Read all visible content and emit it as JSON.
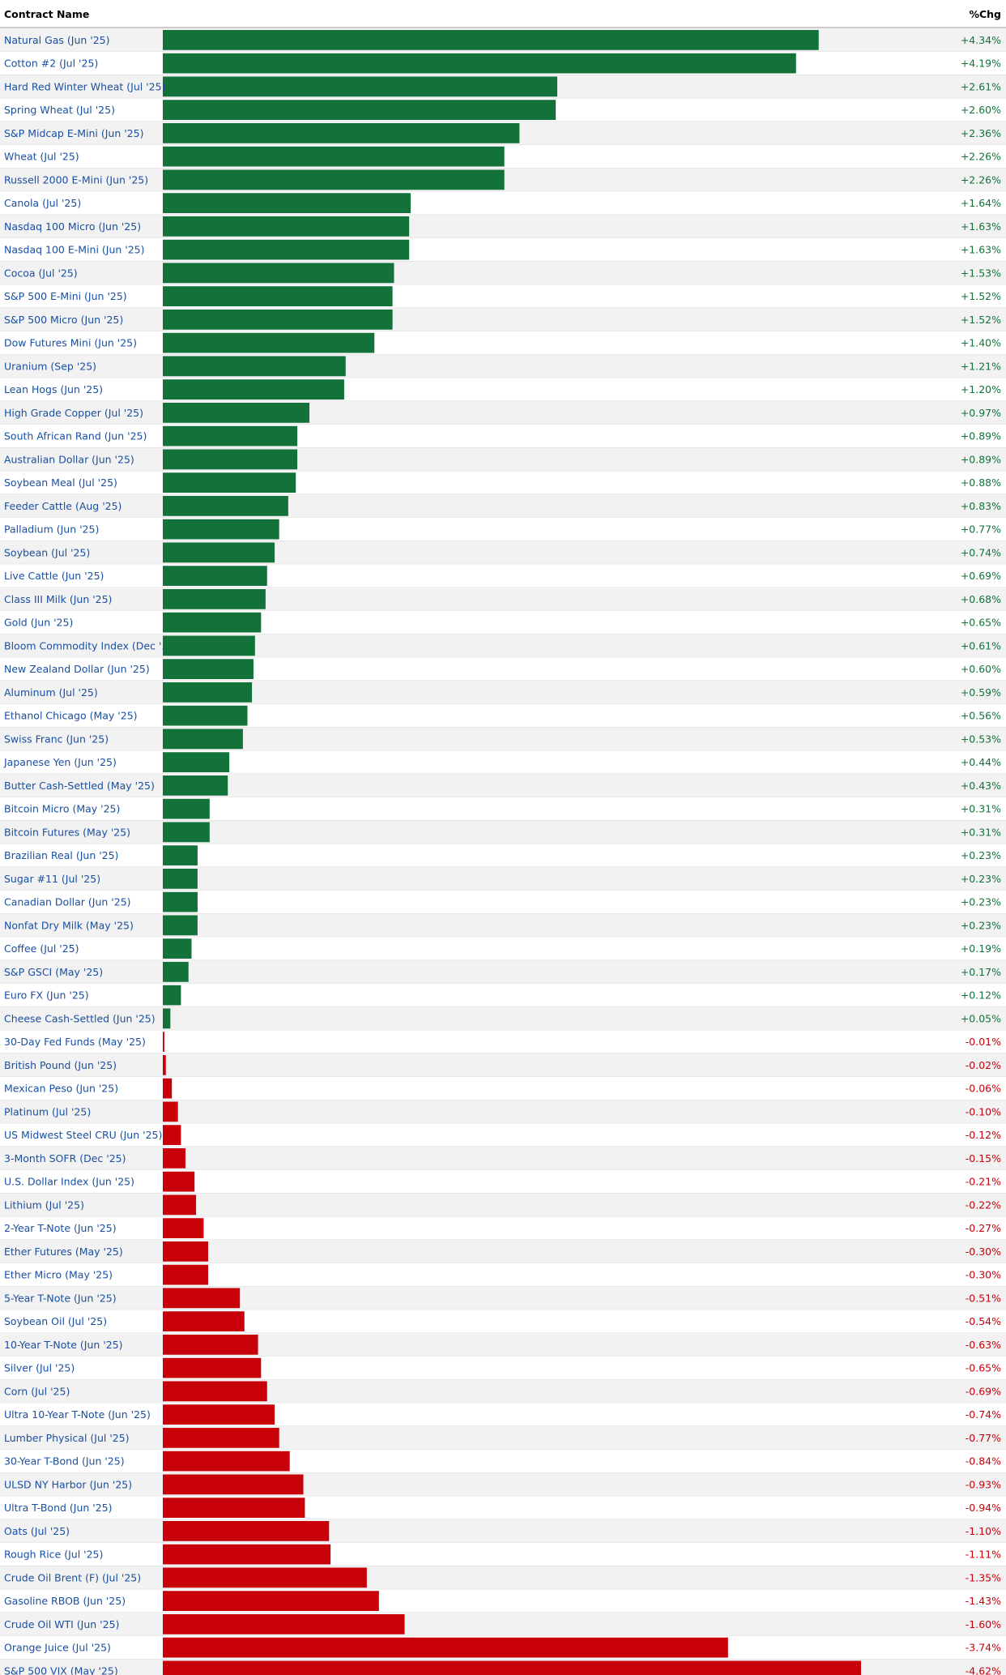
{
  "header": {
    "name_col": "Contract Name",
    "pct_col": "%Chg"
  },
  "colors": {
    "positive_bar": "#13723a",
    "negative_bar": "#c8000a",
    "positive_text": "#13723a",
    "negative_text": "#c8000a",
    "name_text": "#1a4fa0",
    "row_alt": "#f2f2f2",
    "row_line": "#d9d9d9"
  },
  "chart_data": {
    "type": "bar",
    "orientation": "horizontal",
    "xlabel": "",
    "ylabel": "",
    "rows": [
      {
        "name": "Natural Gas (Jun '25)",
        "value": 4.34,
        "label": "+4.34%"
      },
      {
        "name": "Cotton #2 (Jul '25)",
        "value": 4.19,
        "label": "+4.19%"
      },
      {
        "name": "Hard Red Winter Wheat (Jul '25)",
        "value": 2.61,
        "label": "+2.61%"
      },
      {
        "name": "Spring Wheat (Jul '25)",
        "value": 2.6,
        "label": "+2.60%"
      },
      {
        "name": "S&P Midcap E-Mini (Jun '25)",
        "value": 2.36,
        "label": "+2.36%"
      },
      {
        "name": "Wheat (Jul '25)",
        "value": 2.26,
        "label": "+2.26%"
      },
      {
        "name": "Russell 2000 E-Mini (Jun '25)",
        "value": 2.26,
        "label": "+2.26%"
      },
      {
        "name": "Canola (Jul '25)",
        "value": 1.64,
        "label": "+1.64%"
      },
      {
        "name": "Nasdaq 100 Micro (Jun '25)",
        "value": 1.63,
        "label": "+1.63%"
      },
      {
        "name": "Nasdaq 100 E-Mini (Jun '25)",
        "value": 1.63,
        "label": "+1.63%"
      },
      {
        "name": "Cocoa (Jul '25)",
        "value": 1.53,
        "label": "+1.53%"
      },
      {
        "name": "S&P 500 E-Mini (Jun '25)",
        "value": 1.52,
        "label": "+1.52%"
      },
      {
        "name": "S&P 500 Micro (Jun '25)",
        "value": 1.52,
        "label": "+1.52%"
      },
      {
        "name": "Dow Futures Mini (Jun '25)",
        "value": 1.4,
        "label": "+1.40%"
      },
      {
        "name": "Uranium (Sep '25)",
        "value": 1.21,
        "label": "+1.21%"
      },
      {
        "name": "Lean Hogs (Jun '25)",
        "value": 1.2,
        "label": "+1.20%"
      },
      {
        "name": "High Grade Copper (Jul '25)",
        "value": 0.97,
        "label": "+0.97%"
      },
      {
        "name": "South African Rand (Jun '25)",
        "value": 0.89,
        "label": "+0.89%"
      },
      {
        "name": "Australian Dollar (Jun '25)",
        "value": 0.89,
        "label": "+0.89%"
      },
      {
        "name": "Soybean Meal (Jul '25)",
        "value": 0.88,
        "label": "+0.88%"
      },
      {
        "name": "Feeder Cattle (Aug '25)",
        "value": 0.83,
        "label": "+0.83%"
      },
      {
        "name": "Palladium (Jun '25)",
        "value": 0.77,
        "label": "+0.77%"
      },
      {
        "name": "Soybean (Jul '25)",
        "value": 0.74,
        "label": "+0.74%"
      },
      {
        "name": "Live Cattle (Jun '25)",
        "value": 0.69,
        "label": "+0.69%"
      },
      {
        "name": "Class III Milk (Jun '25)",
        "value": 0.68,
        "label": "+0.68%"
      },
      {
        "name": "Gold (Jun '25)",
        "value": 0.65,
        "label": "+0.65%"
      },
      {
        "name": "Bloom Commodity Index (Dec '...",
        "value": 0.61,
        "label": "+0.61%"
      },
      {
        "name": "New Zealand Dollar (Jun '25)",
        "value": 0.6,
        "label": "+0.60%"
      },
      {
        "name": "Aluminum (Jul '25)",
        "value": 0.59,
        "label": "+0.59%"
      },
      {
        "name": "Ethanol Chicago (May '25)",
        "value": 0.56,
        "label": "+0.56%"
      },
      {
        "name": "Swiss Franc (Jun '25)",
        "value": 0.53,
        "label": "+0.53%"
      },
      {
        "name": "Japanese Yen (Jun '25)",
        "value": 0.44,
        "label": "+0.44%"
      },
      {
        "name": "Butter Cash-Settled (May '25)",
        "value": 0.43,
        "label": "+0.43%"
      },
      {
        "name": "Bitcoin Micro (May '25)",
        "value": 0.31,
        "label": "+0.31%"
      },
      {
        "name": "Bitcoin Futures (May '25)",
        "value": 0.31,
        "label": "+0.31%"
      },
      {
        "name": "Brazilian Real (Jun '25)",
        "value": 0.23,
        "label": "+0.23%"
      },
      {
        "name": "Sugar #11 (Jul '25)",
        "value": 0.23,
        "label": "+0.23%"
      },
      {
        "name": "Canadian Dollar (Jun '25)",
        "value": 0.23,
        "label": "+0.23%"
      },
      {
        "name": "Nonfat Dry Milk (May '25)",
        "value": 0.23,
        "label": "+0.23%"
      },
      {
        "name": "Coffee (Jul '25)",
        "value": 0.19,
        "label": "+0.19%"
      },
      {
        "name": "S&P GSCI (May '25)",
        "value": 0.17,
        "label": "+0.17%"
      },
      {
        "name": "Euro FX (Jun '25)",
        "value": 0.12,
        "label": "+0.12%"
      },
      {
        "name": "Cheese Cash-Settled (Jun '25)",
        "value": 0.05,
        "label": "+0.05%"
      },
      {
        "name": "30-Day Fed Funds (May '25)",
        "value": -0.01,
        "label": "-0.01%"
      },
      {
        "name": "British Pound (Jun '25)",
        "value": -0.02,
        "label": "-0.02%"
      },
      {
        "name": "Mexican Peso (Jun '25)",
        "value": -0.06,
        "label": "-0.06%"
      },
      {
        "name": "Platinum (Jul '25)",
        "value": -0.1,
        "label": "-0.10%"
      },
      {
        "name": "US Midwest Steel CRU (Jun '25)",
        "value": -0.12,
        "label": "-0.12%"
      },
      {
        "name": "3-Month SOFR (Dec '25)",
        "value": -0.15,
        "label": "-0.15%"
      },
      {
        "name": "U.S. Dollar Index (Jun '25)",
        "value": -0.21,
        "label": "-0.21%"
      },
      {
        "name": "Lithium (Jul '25)",
        "value": -0.22,
        "label": "-0.22%"
      },
      {
        "name": "2-Year T-Note (Jun '25)",
        "value": -0.27,
        "label": "-0.27%"
      },
      {
        "name": "Ether Futures (May '25)",
        "value": -0.3,
        "label": "-0.30%"
      },
      {
        "name": "Ether Micro (May '25)",
        "value": -0.3,
        "label": "-0.30%"
      },
      {
        "name": "5-Year T-Note (Jun '25)",
        "value": -0.51,
        "label": "-0.51%"
      },
      {
        "name": "Soybean Oil (Jul '25)",
        "value": -0.54,
        "label": "-0.54%"
      },
      {
        "name": "10-Year T-Note (Jun '25)",
        "value": -0.63,
        "label": "-0.63%"
      },
      {
        "name": "Silver (Jul '25)",
        "value": -0.65,
        "label": "-0.65%"
      },
      {
        "name": "Corn (Jul '25)",
        "value": -0.69,
        "label": "-0.69%"
      },
      {
        "name": "Ultra 10-Year T-Note (Jun '25)",
        "value": -0.74,
        "label": "-0.74%"
      },
      {
        "name": "Lumber Physical (Jul '25)",
        "value": -0.77,
        "label": "-0.77%"
      },
      {
        "name": "30-Year T-Bond (Jun '25)",
        "value": -0.84,
        "label": "-0.84%"
      },
      {
        "name": "ULSD NY Harbor (Jun '25)",
        "value": -0.93,
        "label": "-0.93%"
      },
      {
        "name": "Ultra T-Bond (Jun '25)",
        "value": -0.94,
        "label": "-0.94%"
      },
      {
        "name": "Oats (Jul '25)",
        "value": -1.1,
        "label": "-1.10%"
      },
      {
        "name": "Rough Rice (Jul '25)",
        "value": -1.11,
        "label": "-1.11%"
      },
      {
        "name": "Crude Oil Brent (F) (Jul '25)",
        "value": -1.35,
        "label": "-1.35%"
      },
      {
        "name": "Gasoline RBOB (Jun '25)",
        "value": -1.43,
        "label": "-1.43%"
      },
      {
        "name": "Crude Oil WTI (Jun '25)",
        "value": -1.6,
        "label": "-1.60%"
      },
      {
        "name": "Orange Juice (Jul '25)",
        "value": -3.74,
        "label": "-3.74%"
      },
      {
        "name": "S&P 500 VIX (May '25)",
        "value": -4.62,
        "label": "-4.62%"
      }
    ]
  }
}
